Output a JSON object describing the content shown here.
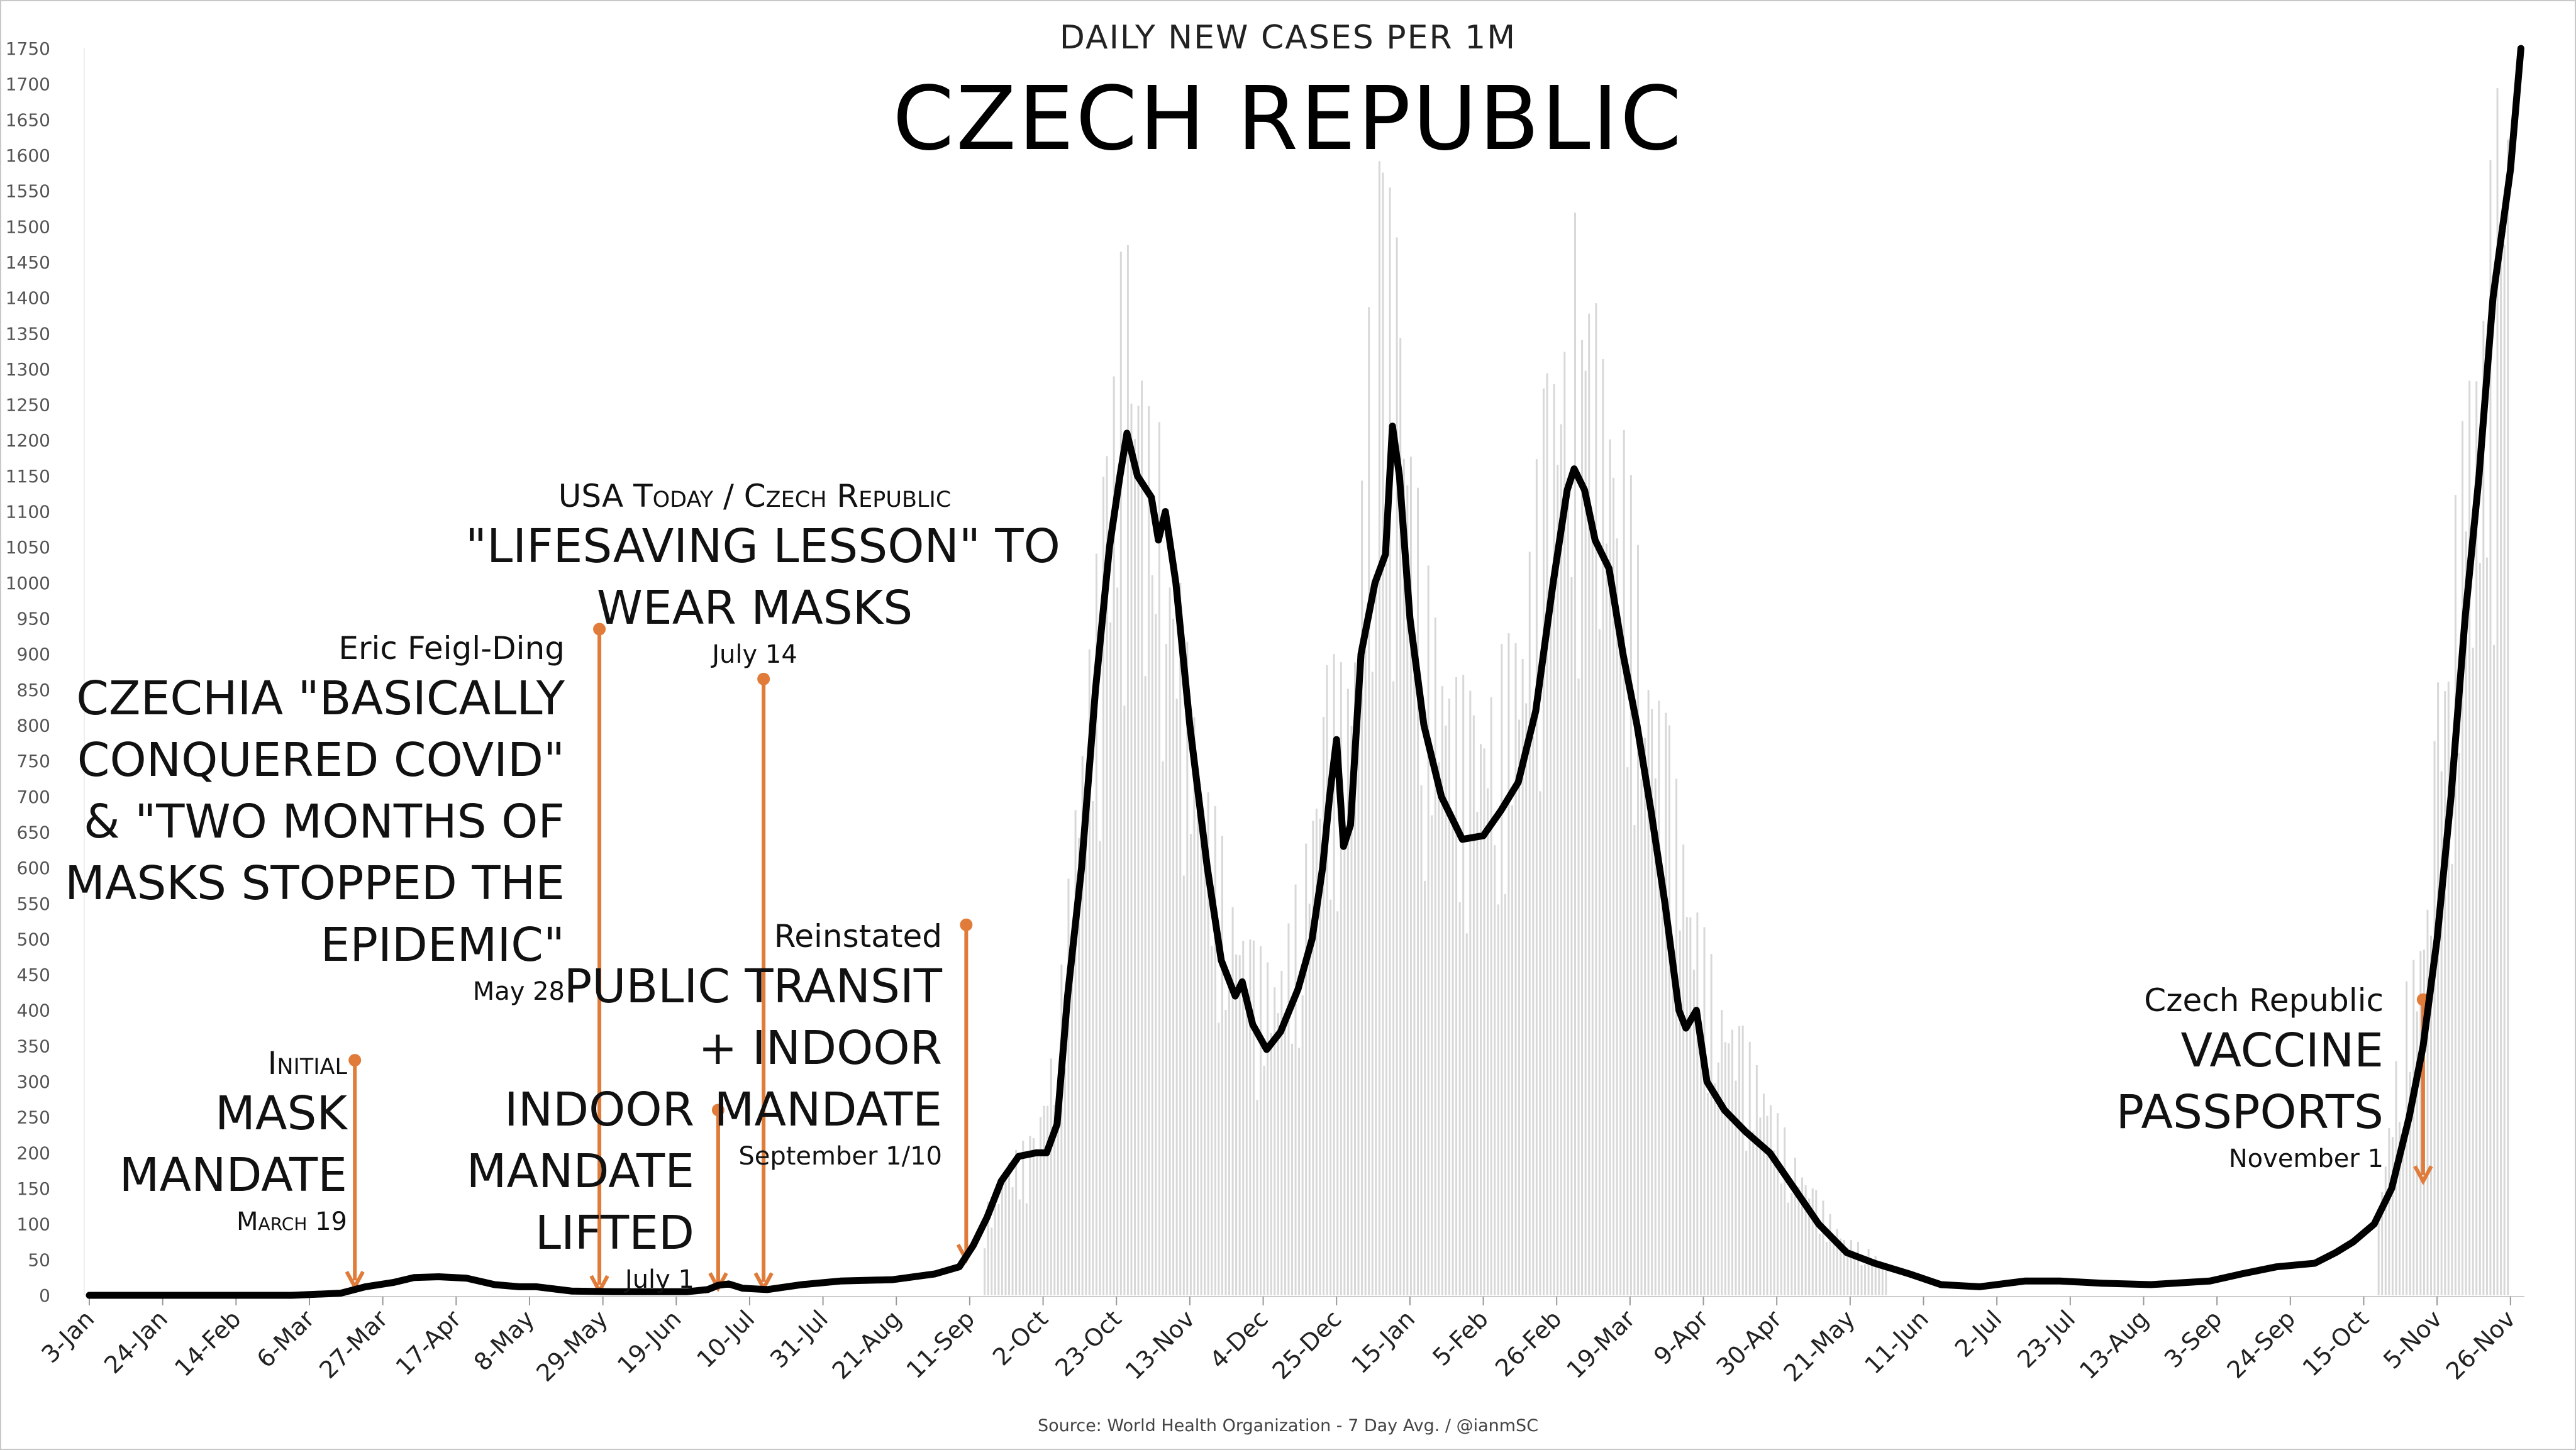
{
  "header": {
    "subtitle": "DAILY NEW CASES PER 1M",
    "title": "CZECH REPUBLIC"
  },
  "source": "Source: World Health Organization - 7 Day Avg. / @ianmSC",
  "colors": {
    "line": "#000000",
    "bars": "#d8d8d8",
    "annotation": "#e07b39",
    "axis": "#555555"
  },
  "annotations": [
    {
      "id": "initial-mask-mandate",
      "kicker": "Initial",
      "headline": [
        "MASK",
        "MANDATE"
      ],
      "date": "March 19",
      "x": "2020-03-19"
    },
    {
      "id": "feigl-ding",
      "kicker": "Eric Feigl-Ding",
      "headline": [
        "CZECHIA \"BASICALLY",
        "CONQUERED COVID\"",
        "& \"TWO MONTHS OF",
        "MASKS STOPPED THE",
        "EPIDEMIC\""
      ],
      "date": "May 28",
      "x": "2020-05-28"
    },
    {
      "id": "indoor-mandate-lifted",
      "kicker": "",
      "headline": [
        "INDOOR",
        "MANDATE",
        "LIFTED"
      ],
      "date": "July 1",
      "x": "2020-07-01"
    },
    {
      "id": "usa-today",
      "kicker": "USA Today / Czech Republic",
      "headline": [
        "\"LIFESAVING LESSON\" TO",
        "WEAR MASKS"
      ],
      "date": "July 14",
      "x": "2020-07-14"
    },
    {
      "id": "reinstated",
      "kicker": "Reinstated",
      "headline": [
        "PUBLIC TRANSIT",
        "+  INDOOR",
        "MANDATE"
      ],
      "date": "September 1/10",
      "x": "2020-09-10"
    },
    {
      "id": "vaccine-passports",
      "kicker": "Czech Republic",
      "headline": [
        "VACCINE",
        "PASSPORTS"
      ],
      "date": "November 1",
      "x": "2021-11-01"
    }
  ],
  "chart_data": {
    "type": "line",
    "title": "CZECH REPUBLIC",
    "subtitle": "DAILY NEW CASES PER 1M",
    "xlabel": "",
    "ylabel": "",
    "ylim": [
      0,
      1750
    ],
    "yticks": [
      0,
      50,
      100,
      150,
      200,
      250,
      300,
      350,
      400,
      450,
      500,
      550,
      600,
      650,
      700,
      750,
      800,
      850,
      900,
      950,
      1000,
      1050,
      1100,
      1150,
      1200,
      1250,
      1300,
      1350,
      1400,
      1450,
      1500,
      1550,
      1600,
      1650,
      1700,
      1750
    ],
    "xlim": [
      "2020-01-03",
      "2021-11-30"
    ],
    "xticks": [
      {
        "label": "3-Jan",
        "date": "2020-01-03"
      },
      {
        "label": "24-Jan",
        "date": "2020-01-24"
      },
      {
        "label": "14-Feb",
        "date": "2020-02-14"
      },
      {
        "label": "6-Mar",
        "date": "2020-03-06"
      },
      {
        "label": "27-Mar",
        "date": "2020-03-27"
      },
      {
        "label": "17-Apr",
        "date": "2020-04-17"
      },
      {
        "label": "8-May",
        "date": "2020-05-08"
      },
      {
        "label": "29-May",
        "date": "2020-05-29"
      },
      {
        "label": "19-Jun",
        "date": "2020-06-19"
      },
      {
        "label": "10-Jul",
        "date": "2020-07-10"
      },
      {
        "label": "31-Jul",
        "date": "2020-07-31"
      },
      {
        "label": "21-Aug",
        "date": "2020-08-21"
      },
      {
        "label": "11-Sep",
        "date": "2020-09-11"
      },
      {
        "label": "2-Oct",
        "date": "2020-10-02"
      },
      {
        "label": "23-Oct",
        "date": "2020-10-23"
      },
      {
        "label": "13-Nov",
        "date": "2020-11-13"
      },
      {
        "label": "4-Dec",
        "date": "2020-12-04"
      },
      {
        "label": "25-Dec",
        "date": "2020-12-25"
      },
      {
        "label": "15-Jan",
        "date": "2021-01-15"
      },
      {
        "label": "5-Feb",
        "date": "2021-02-05"
      },
      {
        "label": "26-Feb",
        "date": "2021-02-26"
      },
      {
        "label": "19-Mar",
        "date": "2021-03-19"
      },
      {
        "label": "9-Apr",
        "date": "2021-04-09"
      },
      {
        "label": "30-Apr",
        "date": "2021-04-30"
      },
      {
        "label": "21-May",
        "date": "2021-05-21"
      },
      {
        "label": "11-Jun",
        "date": "2021-06-11"
      },
      {
        "label": "2-Jul",
        "date": "2021-07-02"
      },
      {
        "label": "23-Jul",
        "date": "2021-07-23"
      },
      {
        "label": "13-Aug",
        "date": "2021-08-13"
      },
      {
        "label": "3-Sep",
        "date": "2021-09-03"
      },
      {
        "label": "24-Sep",
        "date": "2021-09-24"
      },
      {
        "label": "15-Oct",
        "date": "2021-10-15"
      },
      {
        "label": "5-Nov",
        "date": "2021-11-05"
      },
      {
        "label": "26-Nov",
        "date": "2021-11-26"
      }
    ],
    "grid": false,
    "series": [
      {
        "name": "",
        "kind": "line",
        "points": [
          [
            "2020-01-03",
            0
          ],
          [
            "2020-03-01",
            0
          ],
          [
            "2020-03-15",
            3
          ],
          [
            "2020-03-22",
            12
          ],
          [
            "2020-03-30",
            18
          ],
          [
            "2020-04-05",
            25
          ],
          [
            "2020-04-12",
            26
          ],
          [
            "2020-04-20",
            24
          ],
          [
            "2020-04-28",
            15
          ],
          [
            "2020-05-05",
            12
          ],
          [
            "2020-05-10",
            12
          ],
          [
            "2020-05-20",
            6
          ],
          [
            "2020-06-01",
            5
          ],
          [
            "2020-06-10",
            5
          ],
          [
            "2020-06-22",
            5
          ],
          [
            "2020-06-28",
            8
          ],
          [
            "2020-07-01",
            14
          ],
          [
            "2020-07-04",
            16
          ],
          [
            "2020-07-08",
            10
          ],
          [
            "2020-07-15",
            8
          ],
          [
            "2020-07-25",
            15
          ],
          [
            "2020-08-05",
            20
          ],
          [
            "2020-08-20",
            22
          ],
          [
            "2020-09-01",
            30
          ],
          [
            "2020-09-08",
            40
          ],
          [
            "2020-09-12",
            70
          ],
          [
            "2020-09-16",
            110
          ],
          [
            "2020-09-20",
            160
          ],
          [
            "2020-09-25",
            195
          ],
          [
            "2020-09-30",
            200
          ],
          [
            "2020-10-03",
            200
          ],
          [
            "2020-10-06",
            240
          ],
          [
            "2020-10-09",
            420
          ],
          [
            "2020-10-13",
            600
          ],
          [
            "2020-10-17",
            850
          ],
          [
            "2020-10-21",
            1050
          ],
          [
            "2020-10-24",
            1150
          ],
          [
            "2020-10-26",
            1210
          ],
          [
            "2020-10-29",
            1150
          ],
          [
            "2020-11-02",
            1120
          ],
          [
            "2020-11-04",
            1060
          ],
          [
            "2020-11-06",
            1100
          ],
          [
            "2020-11-09",
            1000
          ],
          [
            "2020-11-13",
            800
          ],
          [
            "2020-11-18",
            600
          ],
          [
            "2020-11-22",
            470
          ],
          [
            "2020-11-26",
            420
          ],
          [
            "2020-11-28",
            440
          ],
          [
            "2020-12-01",
            380
          ],
          [
            "2020-12-05",
            345
          ],
          [
            "2020-12-09",
            370
          ],
          [
            "2020-12-14",
            430
          ],
          [
            "2020-12-18",
            500
          ],
          [
            "2020-12-21",
            600
          ],
          [
            "2020-12-23",
            700
          ],
          [
            "2020-12-25",
            780
          ],
          [
            "2020-12-27",
            630
          ],
          [
            "2020-12-29",
            660
          ],
          [
            "2021-01-01",
            900
          ],
          [
            "2021-01-05",
            1000
          ],
          [
            "2021-01-08",
            1040
          ],
          [
            "2021-01-10",
            1220
          ],
          [
            "2021-01-12",
            1150
          ],
          [
            "2021-01-15",
            950
          ],
          [
            "2021-01-19",
            800
          ],
          [
            "2021-01-24",
            700
          ],
          [
            "2021-01-30",
            640
          ],
          [
            "2021-02-05",
            645
          ],
          [
            "2021-02-10",
            680
          ],
          [
            "2021-02-15",
            720
          ],
          [
            "2021-02-20",
            820
          ],
          [
            "2021-02-25",
            1000
          ],
          [
            "2021-03-01",
            1130
          ],
          [
            "2021-03-03",
            1160
          ],
          [
            "2021-03-06",
            1130
          ],
          [
            "2021-03-09",
            1060
          ],
          [
            "2021-03-13",
            1020
          ],
          [
            "2021-03-17",
            900
          ],
          [
            "2021-03-21",
            800
          ],
          [
            "2021-03-25",
            680
          ],
          [
            "2021-03-29",
            550
          ],
          [
            "2021-04-02",
            400
          ],
          [
            "2021-04-04",
            375
          ],
          [
            "2021-04-07",
            400
          ],
          [
            "2021-04-10",
            300
          ],
          [
            "2021-04-15",
            260
          ],
          [
            "2021-04-21",
            230
          ],
          [
            "2021-04-28",
            200
          ],
          [
            "2021-05-05",
            150
          ],
          [
            "2021-05-12",
            100
          ],
          [
            "2021-05-20",
            60
          ],
          [
            "2021-05-28",
            45
          ],
          [
            "2021-06-07",
            30
          ],
          [
            "2021-06-16",
            15
          ],
          [
            "2021-06-27",
            12
          ],
          [
            "2021-07-10",
            20
          ],
          [
            "2021-07-20",
            20
          ],
          [
            "2021-08-01",
            17
          ],
          [
            "2021-08-15",
            15
          ],
          [
            "2021-09-01",
            20
          ],
          [
            "2021-09-10",
            30
          ],
          [
            "2021-09-20",
            40
          ],
          [
            "2021-10-01",
            45
          ],
          [
            "2021-10-07",
            60
          ],
          [
            "2021-10-12",
            75
          ],
          [
            "2021-10-18",
            100
          ],
          [
            "2021-10-23",
            150
          ],
          [
            "2021-10-28",
            250
          ],
          [
            "2021-11-01",
            350
          ],
          [
            "2021-11-05",
            500
          ],
          [
            "2021-11-09",
            700
          ],
          [
            "2021-11-13",
            950
          ],
          [
            "2021-11-17",
            1150
          ],
          [
            "2021-11-21",
            1400
          ],
          [
            "2021-11-26",
            1580
          ],
          [
            "2021-11-29",
            1750
          ]
        ]
      },
      {
        "name": "",
        "kind": "bar",
        "note_source": "daily values (light gray bars)",
        "points": [
          [
            "2020-09-15",
            120
          ],
          [
            "2020-09-22",
            200
          ],
          [
            "2020-09-29",
            230
          ],
          [
            "2020-10-06",
            400
          ],
          [
            "2020-10-13",
            850
          ],
          [
            "2020-10-20",
            1200
          ],
          [
            "2020-10-23",
            1470
          ],
          [
            "2020-10-27",
            1480
          ],
          [
            "2020-10-30",
            1290
          ],
          [
            "2020-11-03",
            1300
          ],
          [
            "2020-11-06",
            1150
          ],
          [
            "2020-11-10",
            1000
          ],
          [
            "2020-11-17",
            760
          ],
          [
            "2020-11-24",
            600
          ],
          [
            "2020-12-01",
            500
          ],
          [
            "2020-12-08",
            470
          ],
          [
            "2020-12-15",
            620
          ],
          [
            "2020-12-22",
            900
          ],
          [
            "2020-12-29",
            900
          ],
          [
            "2021-01-05",
            1600
          ],
          [
            "2021-01-07",
            1640
          ],
          [
            "2021-01-12",
            1450
          ],
          [
            "2021-01-19",
            1050
          ],
          [
            "2021-01-26",
            900
          ],
          [
            "2021-02-02",
            850
          ],
          [
            "2021-02-09",
            900
          ],
          [
            "2021-02-16",
            1000
          ],
          [
            "2021-02-23",
            1320
          ],
          [
            "2021-03-02",
            1500
          ],
          [
            "2021-03-05",
            1580
          ],
          [
            "2021-03-09",
            1400
          ],
          [
            "2021-03-16",
            1280
          ],
          [
            "2021-03-23",
            980
          ],
          [
            "2021-03-30",
            800
          ],
          [
            "2021-04-06",
            580
          ],
          [
            "2021-04-13",
            440
          ],
          [
            "2021-04-20",
            380
          ],
          [
            "2021-04-27",
            300
          ],
          [
            "2021-05-04",
            210
          ],
          [
            "2021-05-11",
            150
          ],
          [
            "2021-05-18",
            90
          ],
          [
            "2021-05-25",
            70
          ],
          [
            "2021-06-01",
            45
          ],
          [
            "2021-10-19",
            130
          ],
          [
            "2021-10-26",
            420
          ],
          [
            "2021-11-02",
            580
          ],
          [
            "2021-11-05",
            900
          ],
          [
            "2021-11-09",
            1000
          ],
          [
            "2021-11-12",
            1370
          ],
          [
            "2021-11-16",
            1310
          ],
          [
            "2021-11-19",
            1550
          ],
          [
            "2021-11-23",
            1750
          ],
          [
            "2021-11-26",
            1750
          ]
        ]
      }
    ],
    "annotation_arrows": [
      {
        "label": "March 19",
        "x": "2020-03-19",
        "y_top": 330,
        "y_bottom": 12
      },
      {
        "label": "May 28",
        "x": "2020-05-28",
        "y_top": 935,
        "y_bottom": 6
      },
      {
        "label": "July 1",
        "x": "2020-07-01",
        "y_top": 260,
        "y_bottom": 10
      },
      {
        "label": "July 14",
        "x": "2020-07-14",
        "y_top": 865,
        "y_bottom": 10
      },
      {
        "label": "September 1/10",
        "x": "2020-09-10",
        "y_top": 520,
        "y_bottom": 50
      },
      {
        "label": "November 1",
        "x": "2021-11-01",
        "y_top": 415,
        "y_bottom": 160
      }
    ]
  }
}
